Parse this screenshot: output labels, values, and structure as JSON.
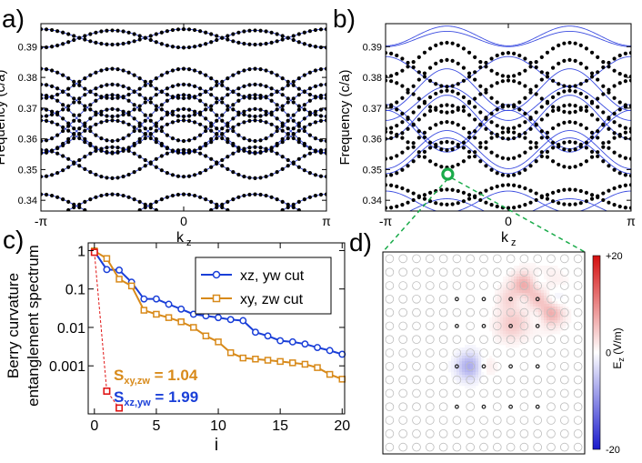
{
  "panel_labels": {
    "a": "a)",
    "b": "b)",
    "c": "c)",
    "d": "d)"
  },
  "chart_data": [
    {
      "id": "a",
      "type": "line",
      "title": "",
      "ylabel": "Frequency (c/a)",
      "xlabel": "k",
      "xlabel_sub": "z",
      "xticklabels": [
        "-π",
        "0",
        "π"
      ],
      "yticklabels": [
        "0.34",
        "0.35",
        "0.36",
        "0.37",
        "0.38",
        "0.39"
      ],
      "yticks": [
        0.34,
        0.35,
        0.36,
        0.37,
        0.38,
        0.39
      ],
      "ylim": [
        0.3365,
        0.3975
      ],
      "xlim": [
        -3.1416,
        3.1416
      ],
      "series": [
        {
          "name": "band1",
          "a": 0.33815,
          "b": 0.0038,
          "phase": 0
        },
        {
          "name": "band2",
          "a": 0.33815,
          "b": -0.0038,
          "phase": 0
        },
        {
          "name": "band3",
          "a": 0.3525,
          "b": -0.0048,
          "phase": 0
        },
        {
          "name": "band4",
          "a": 0.3518,
          "b": 0.0046,
          "phase": 0
        },
        {
          "name": "band5",
          "a": 0.3608,
          "b": 0.0052,
          "phase": 1
        },
        {
          "name": "band6",
          "a": 0.3608,
          "b": -0.0052,
          "phase": 1
        },
        {
          "name": "band7",
          "a": 0.3625,
          "b": 0.0072,
          "phase": 0
        },
        {
          "name": "band8",
          "a": 0.3625,
          "b": -0.0072,
          "phase": 0
        },
        {
          "name": "band9",
          "a": 0.3668,
          "b": 0.0075,
          "phase": 1
        },
        {
          "name": "band10",
          "a": 0.3668,
          "b": -0.0075,
          "phase": 1
        },
        {
          "name": "band11",
          "a": 0.3725,
          "b": 0.0052,
          "phase": 0
        },
        {
          "name": "band12",
          "a": 0.3725,
          "b": -0.0052,
          "phase": 0
        },
        {
          "name": "band13",
          "a": 0.378,
          "b": 0.0048,
          "phase": 0
        },
        {
          "name": "band14",
          "a": 0.378,
          "b": -0.0048,
          "phase": 0
        },
        {
          "name": "band15",
          "a": 0.3925,
          "b": -0.0028,
          "phase": 0
        },
        {
          "name": "band16",
          "a": 0.3932,
          "b": 0.0025,
          "phase": 0
        }
      ]
    },
    {
      "id": "b",
      "type": "line",
      "title": "",
      "ylabel": "Frequency (c/a)",
      "xlabel": "k",
      "xlabel_sub": "z",
      "xticklabels": [
        "-π",
        "0",
        "π"
      ],
      "yticklabels": [
        "0.34",
        "0.35",
        "0.36",
        "0.37",
        "0.38",
        "0.39"
      ],
      "yticks": [
        0.34,
        0.35,
        0.36,
        0.37,
        0.38,
        0.39
      ],
      "ylim": [
        0.3365,
        0.3975
      ],
      "xlim": [
        -3.1416,
        3.1416
      ],
      "blue_series": [
        {
          "name": "blue1",
          "a": 0.3375,
          "b": -0.003,
          "phase": 0
        },
        {
          "name": "blue2",
          "a": 0.3395,
          "b": 0.0035,
          "phase": 0
        },
        {
          "name": "blue3",
          "a": 0.3545,
          "b": -0.0058,
          "phase": 0
        },
        {
          "name": "blue4",
          "a": 0.3565,
          "b": -0.0062,
          "phase": 0
        },
        {
          "name": "blue5",
          "a": 0.3625,
          "b": 0.0068,
          "phase": 0
        },
        {
          "name": "blue6",
          "a": 0.364,
          "b": 0.0072,
          "phase": 0
        },
        {
          "name": "blue7",
          "a": 0.367,
          "b": -0.0072,
          "phase": 0
        },
        {
          "name": "blue8",
          "a": 0.3715,
          "b": 0.0055,
          "phase": 1
        },
        {
          "name": "blue9",
          "a": 0.376,
          "b": -0.0068,
          "phase": 0
        },
        {
          "name": "blue10",
          "a": 0.382,
          "b": 0.0048,
          "phase": 0
        },
        {
          "name": "blue11",
          "a": 0.3925,
          "b": -0.0025,
          "phase": 0
        },
        {
          "name": "blue12",
          "a": 0.3935,
          "b": -0.0032,
          "phase": 0
        }
      ],
      "dot_series": [
        {
          "name": "dots1",
          "a": 0.3405,
          "b": -0.003,
          "phase": 0
        },
        {
          "name": "dots2",
          "a": 0.3418,
          "b": 0.0032,
          "phase": 0
        },
        {
          "name": "dots3",
          "a": 0.3535,
          "b": -0.0055,
          "phase": 0
        },
        {
          "name": "dots4",
          "a": 0.3565,
          "b": 0.0058,
          "phase": 0
        },
        {
          "name": "dots5",
          "a": 0.3595,
          "b": -0.006,
          "phase": 0
        },
        {
          "name": "dots6",
          "a": 0.3635,
          "b": 0.0072,
          "phase": 0
        },
        {
          "name": "dots7",
          "a": 0.3655,
          "b": 0.0055,
          "phase": 1
        },
        {
          "name": "dots8",
          "a": 0.3695,
          "b": -0.0062,
          "phase": 0
        },
        {
          "name": "dots9",
          "a": 0.3738,
          "b": 0.0052,
          "phase": 0
        },
        {
          "name": "dots10",
          "a": 0.3782,
          "b": -0.0075,
          "phase": 0
        },
        {
          "name": "dots11",
          "a": 0.3825,
          "b": 0.0055,
          "phase": 0
        },
        {
          "name": "dots12",
          "a": 0.3858,
          "b": -0.0055,
          "phase": 0
        }
      ],
      "marker": {
        "kz": -1.55,
        "freq": 0.3485,
        "color": "#1aab4a"
      }
    },
    {
      "id": "c",
      "type": "line",
      "title": "",
      "ylabel": [
        "Berry curvature",
        "entanglement spectrum"
      ],
      "xlabel": "i",
      "xticklabels": [
        "0",
        "5",
        "10",
        "15",
        "20"
      ],
      "xticks": [
        0,
        5,
        10,
        15,
        20
      ],
      "yticklabels": [
        "0.001",
        "0.01",
        "0.1",
        "1"
      ],
      "yticks": [
        0.001,
        0.01,
        0.1,
        1
      ],
      "xlim": [
        -0.5,
        20.2
      ],
      "ylim_log10": [
        -4.25,
        0.2
      ],
      "legend_position": "top-right",
      "series": [
        {
          "name": "xz, yw cut",
          "color": "#1a3fd8",
          "values": [
            0.95,
            0.32,
            0.31,
            0.15,
            0.055,
            0.055,
            0.04,
            0.03,
            0.022,
            0.02,
            0.018,
            0.016,
            0.015,
            0.0075,
            0.006,
            0.0045,
            0.0042,
            0.0037,
            0.003,
            0.0025,
            0.002
          ]
        },
        {
          "name": "xy, zw cut",
          "color": "#d88a1a",
          "values": [
            0.98,
            0.62,
            0.18,
            0.12,
            0.028,
            0.022,
            0.018,
            0.014,
            0.01,
            0.006,
            0.0042,
            0.0022,
            0.0016,
            0.0015,
            0.0014,
            0.0013,
            0.0012,
            0.0011,
            0.0009,
            0.0006,
            0.00045
          ]
        },
        {
          "name": "red",
          "color": "#e01515",
          "values": [
            0.9,
            0.00022,
            8e-05
          ]
        }
      ],
      "annotations": [
        {
          "main": "S",
          "sub": "xy,zw",
          "rest": " = 1.04",
          "color": "#d88a1a"
        },
        {
          "main": "S",
          "sub": "xz,yw",
          "rest": " = 1.99",
          "color": "#1a3fd8"
        }
      ]
    },
    {
      "id": "d",
      "type": "heatmap",
      "title": "",
      "colorbar": {
        "label": "E",
        "label_sub": "z",
        "label_unit": " (V/m)",
        "ticklabels": [
          "+20",
          "0",
          "-20"
        ],
        "ticks": [
          20,
          0,
          -20
        ],
        "range": [
          -20,
          20
        ],
        "colors": [
          "#1919cc",
          "#ffffff",
          "#d40f0f"
        ]
      },
      "grid": {
        "cols": 15,
        "rows": 15
      },
      "field_sources": [
        {
          "col": 11,
          "row": 3,
          "amp": 20,
          "spread": 1.1
        },
        {
          "col": 10,
          "row": 3,
          "amp": -11,
          "spread": 0.75
        },
        {
          "col": 12,
          "row": 3,
          "amp": -11,
          "spread": 0.75
        },
        {
          "col": 11,
          "row": 2,
          "amp": -9,
          "spread": 0.7
        },
        {
          "col": 11,
          "row": 4,
          "amp": -9,
          "spread": 0.7
        },
        {
          "col": 10,
          "row": 2,
          "amp": 6,
          "spread": 0.6
        },
        {
          "col": 12,
          "row": 4,
          "amp": 6,
          "spread": 0.6
        },
        {
          "col": 9,
          "row": 3,
          "amp": 4,
          "spread": 0.6
        },
        {
          "col": 6,
          "row": 8,
          "amp": -8,
          "spread": 0.7
        },
        {
          "col": 7,
          "row": 8,
          "amp": 3,
          "spread": 0.6
        },
        {
          "col": 9,
          "row": 5,
          "amp": 4,
          "spread": 0.8
        }
      ],
      "dark_holes": [
        {
          "col": 5,
          "row": 3
        },
        {
          "col": 7,
          "row": 3
        },
        {
          "col": 9,
          "row": 3
        },
        {
          "col": 11,
          "row": 3
        },
        {
          "col": 5,
          "row": 5
        },
        {
          "col": 7,
          "row": 5
        },
        {
          "col": 9,
          "row": 5
        },
        {
          "col": 11,
          "row": 5
        },
        {
          "col": 5,
          "row": 8
        },
        {
          "col": 7,
          "row": 8
        },
        {
          "col": 9,
          "row": 8
        },
        {
          "col": 11,
          "row": 8
        },
        {
          "col": 5,
          "row": 11
        },
        {
          "col": 7,
          "row": 11
        },
        {
          "col": 9,
          "row": 11
        },
        {
          "col": 11,
          "row": 11
        }
      ]
    }
  ]
}
